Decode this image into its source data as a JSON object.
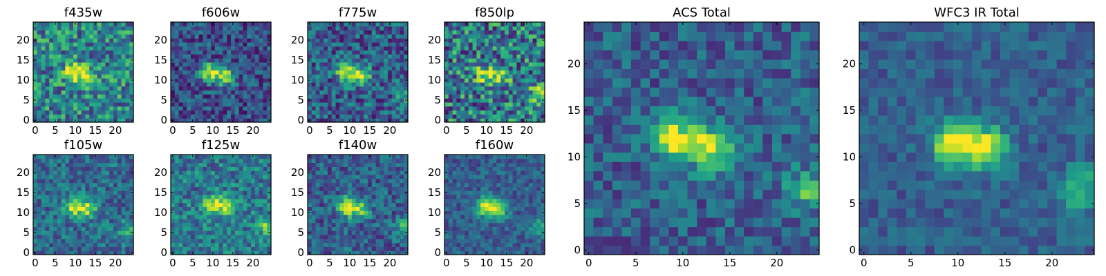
{
  "chart_data": [
    {
      "type": "heatmap",
      "title": "f435w",
      "xticks": [
        "0",
        "5",
        "10",
        "15",
        "20"
      ],
      "yticks": [
        "0",
        "5",
        "10",
        "15",
        "20"
      ],
      "xlim": [
        0,
        25
      ],
      "ylim": [
        0,
        25
      ],
      "colormap": "viridis",
      "peaks": [
        {
          "x": 10,
          "y": 12.5,
          "value": 0.55
        },
        {
          "x": 13.5,
          "y": 11.5,
          "value": 0.45
        }
      ],
      "background": 0.45,
      "noise": 0.3,
      "seed": 11
    },
    {
      "type": "heatmap",
      "title": "f606w",
      "xticks": [
        "0",
        "5",
        "10",
        "15",
        "20"
      ],
      "yticks": [
        "0",
        "5",
        "10",
        "15",
        "20"
      ],
      "xlim": [
        0,
        25
      ],
      "ylim": [
        0,
        25
      ],
      "colormap": "viridis",
      "peaks": [
        {
          "x": 9.5,
          "y": 12.5,
          "value": 0.7
        },
        {
          "x": 13.5,
          "y": 11.5,
          "value": 0.65
        }
      ],
      "background": 0.25,
      "noise": 0.22,
      "seed": 23
    },
    {
      "type": "heatmap",
      "title": "f775w",
      "xticks": [
        "0",
        "5",
        "10",
        "15",
        "20"
      ],
      "yticks": [
        "0",
        "5",
        "10",
        "15",
        "20"
      ],
      "xlim": [
        0,
        25
      ],
      "ylim": [
        0,
        25
      ],
      "colormap": "viridis",
      "peaks": [
        {
          "x": 9.5,
          "y": 12.5,
          "value": 0.65
        },
        {
          "x": 13.5,
          "y": 11.5,
          "value": 0.6
        },
        {
          "x": 24,
          "y": 7,
          "value": 0.3
        }
      ],
      "background": 0.3,
      "noise": 0.25,
      "seed": 37
    },
    {
      "type": "heatmap",
      "title": "f850lp",
      "xticks": [
        "0",
        "5",
        "10",
        "15",
        "20"
      ],
      "yticks": [
        "0",
        "5",
        "10",
        "15",
        "20"
      ],
      "xlim": [
        0,
        25
      ],
      "ylim": [
        0,
        25
      ],
      "colormap": "viridis",
      "peaks": [
        {
          "x": 10,
          "y": 12,
          "value": 0.45
        },
        {
          "x": 14,
          "y": 11.5,
          "value": 0.4
        },
        {
          "x": 23.5,
          "y": 7,
          "value": 0.4
        }
      ],
      "background": 0.4,
      "noise": 0.35,
      "seed": 41
    },
    {
      "type": "heatmap",
      "title": "f105w",
      "xticks": [
        "0",
        "5",
        "10",
        "15",
        "20"
      ],
      "yticks": [
        "0",
        "5",
        "10",
        "15",
        "20"
      ],
      "xlim": [
        0,
        25
      ],
      "ylim": [
        0,
        25
      ],
      "colormap": "viridis",
      "peaks": [
        {
          "x": 10,
          "y": 12,
          "value": 0.55
        },
        {
          "x": 13.5,
          "y": 11.5,
          "value": 0.5
        },
        {
          "x": 23.5,
          "y": 6,
          "value": 0.35
        }
      ],
      "background": 0.35,
      "noise": 0.2,
      "seed": 53
    },
    {
      "type": "heatmap",
      "title": "f125w",
      "xticks": [
        "0",
        "5",
        "10",
        "15",
        "20"
      ],
      "yticks": [
        "0",
        "5",
        "10",
        "15",
        "20"
      ],
      "xlim": [
        0,
        25
      ],
      "ylim": [
        0,
        25
      ],
      "colormap": "viridis",
      "peaks": [
        {
          "x": 10.5,
          "y": 12.5,
          "value": 0.55
        },
        {
          "x": 14,
          "y": 12,
          "value": 0.5
        },
        {
          "x": 23.5,
          "y": 7,
          "value": 0.3
        }
      ],
      "background": 0.4,
      "noise": 0.22,
      "seed": 61
    },
    {
      "type": "heatmap",
      "title": "f140w",
      "xticks": [
        "0",
        "5",
        "10",
        "15",
        "20"
      ],
      "yticks": [
        "0",
        "5",
        "10",
        "15",
        "20"
      ],
      "xlim": [
        0,
        25
      ],
      "ylim": [
        0,
        25
      ],
      "colormap": "viridis",
      "peaks": [
        {
          "x": 9.5,
          "y": 12,
          "value": 0.65
        },
        {
          "x": 13,
          "y": 11.5,
          "value": 0.55
        },
        {
          "x": 23.5,
          "y": 7,
          "value": 0.3
        }
      ],
      "background": 0.3,
      "noise": 0.2,
      "seed": 73
    },
    {
      "type": "heatmap",
      "title": "f160w",
      "xticks": [
        "0",
        "5",
        "10",
        "15",
        "20"
      ],
      "yticks": [
        "0",
        "5",
        "10",
        "15",
        "20"
      ],
      "xlim": [
        0,
        25
      ],
      "ylim": [
        0,
        25
      ],
      "colormap": "viridis",
      "peaks": [
        {
          "x": 10,
          "y": 12,
          "value": 0.65
        },
        {
          "x": 13.5,
          "y": 11.5,
          "value": 0.6
        },
        {
          "x": 24,
          "y": 7,
          "value": 0.35
        }
      ],
      "background": 0.3,
      "noise": 0.15,
      "seed": 89
    },
    {
      "type": "heatmap",
      "title": "ACS Total",
      "xticks": [
        "0",
        "5",
        "10",
        "15",
        "20"
      ],
      "yticks": [
        "0",
        "5",
        "10",
        "15",
        "20"
      ],
      "xlim": [
        0,
        25
      ],
      "ylim": [
        0,
        25
      ],
      "colormap": "viridis",
      "peaks": [
        {
          "x": 9.5,
          "y": 12.5,
          "value": 0.7
        },
        {
          "x": 13.5,
          "y": 11.5,
          "value": 0.65
        },
        {
          "x": 23.5,
          "y": 7,
          "value": 0.35
        }
      ],
      "background": 0.3,
      "noise": 0.18,
      "seed": 97
    },
    {
      "type": "heatmap",
      "title": "WFC3 IR Total",
      "xticks": [
        "0",
        "5",
        "10",
        "15",
        "20"
      ],
      "yticks": [
        "0",
        "5",
        "10",
        "15",
        "20"
      ],
      "xlim": [
        0,
        25
      ],
      "ylim": [
        0,
        25
      ],
      "colormap": "viridis",
      "peaks": [
        {
          "x": 10,
          "y": 12,
          "value": 0.7
        },
        {
          "x": 13.5,
          "y": 11.5,
          "value": 0.65
        },
        {
          "x": 23.5,
          "y": 7,
          "value": 0.4
        }
      ],
      "background": 0.3,
      "noise": 0.12,
      "seed": 103
    }
  ]
}
